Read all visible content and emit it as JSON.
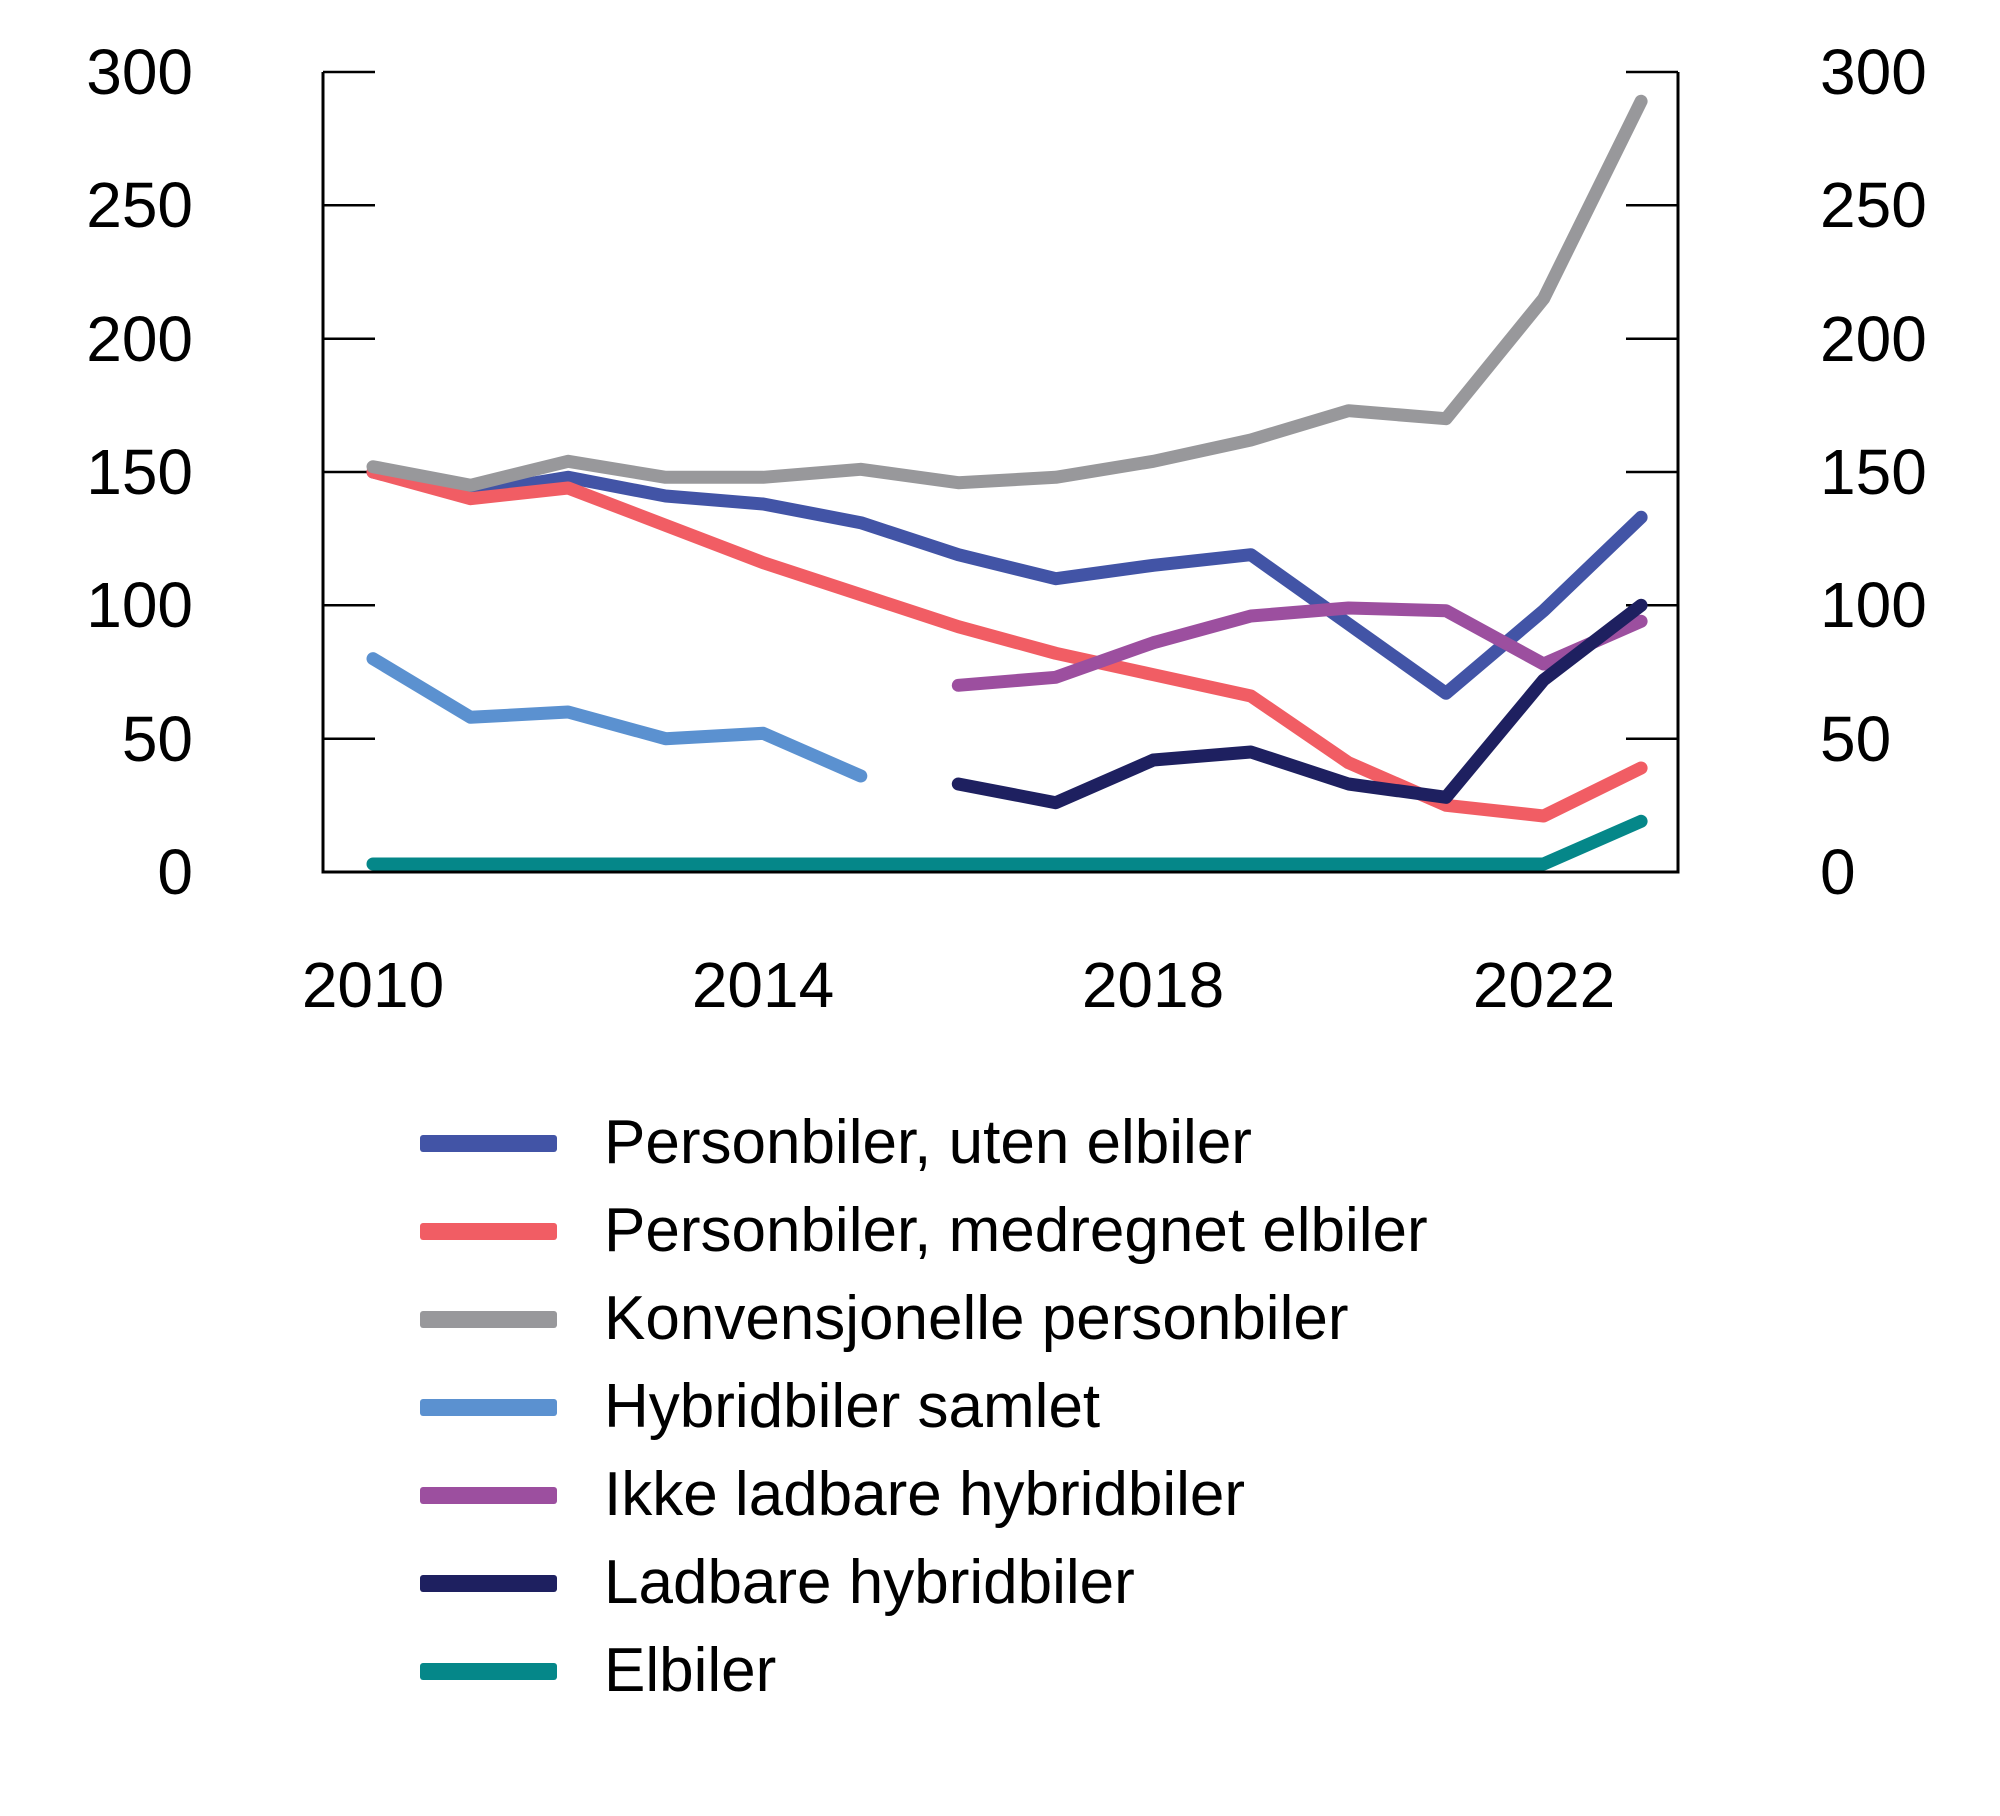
{
  "figure": {
    "background_color": "#ffffff",
    "axis_color": "#000000"
  },
  "chart_data": {
    "type": "line",
    "x": [
      2010,
      2011,
      2012,
      2013,
      2014,
      2015,
      2016,
      2017,
      2018,
      2019,
      2020,
      2021,
      2022,
      2023
    ],
    "xticks": [
      "2010",
      "2014",
      "2018",
      "2022"
    ],
    "yticks_left": [
      "300",
      "250",
      "200",
      "150",
      "100",
      "50",
      "0"
    ],
    "yticks_right": [
      "300",
      "250",
      "200",
      "150",
      "100",
      "50",
      "0"
    ],
    "ylim": [
      0,
      300
    ],
    "grid": false,
    "legend_position": "below-left",
    "series": [
      {
        "name": "Personbiler, uten elbiler",
        "color": "#4254A6",
        "values": [
          150,
          142,
          148,
          141,
          138,
          131,
          119,
          110,
          115,
          119,
          93,
          67,
          98,
          133
        ]
      },
      {
        "name": "Personbiler, medregnet elbiler",
        "color": "#F15D64",
        "values": [
          150,
          140,
          144,
          130,
          116,
          104,
          92,
          82,
          74,
          66,
          41,
          25,
          21,
          39
        ]
      },
      {
        "name": "Konvensjonelle personbiler",
        "color": "#98989B",
        "values": [
          152,
          145,
          154,
          148,
          148,
          151,
          146,
          148,
          154,
          162,
          173,
          170,
          215,
          289
        ]
      },
      {
        "name": "Hybridbiler samlet",
        "color": "#5B91D0",
        "values": [
          80,
          58,
          60,
          50,
          52,
          36,
          null,
          null,
          null,
          null,
          null,
          null,
          null,
          null
        ]
      },
      {
        "name": "Ikke ladbare hybridbiler",
        "color": "#9C4F9F",
        "values": [
          null,
          null,
          null,
          null,
          null,
          null,
          70,
          73,
          86,
          96,
          99,
          98,
          78,
          94
        ]
      },
      {
        "name": "Ladbare hybridbiler",
        "color": "#1E2060",
        "values": [
          null,
          null,
          null,
          null,
          null,
          null,
          33,
          26,
          42,
          45,
          33,
          28,
          72,
          100
        ]
      },
      {
        "name": "Elbiler",
        "color": "#058789",
        "values": [
          3,
          3,
          3,
          3,
          3,
          3,
          3,
          3,
          3,
          3,
          3,
          3,
          3,
          19
        ]
      }
    ]
  }
}
